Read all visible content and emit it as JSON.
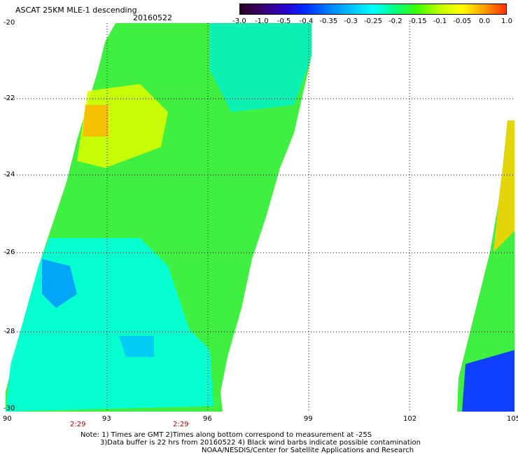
{
  "header": {
    "title": "ASCAT 25KM MLE-1 descending",
    "date": "20160522"
  },
  "colorbar": {
    "labels": [
      "-3.0",
      "-1.0",
      "-0.5",
      "-0.4",
      "-0.35",
      "-0.3",
      "-0.25",
      "-0.2",
      "-0.15",
      "-0.1",
      "-0.05",
      "0.0",
      "1.0"
    ],
    "colors": [
      "#2a0020",
      "#3a0070",
      "#2a00c8",
      "#0030ff",
      "#0080ff",
      "#00c0ff",
      "#00ffff",
      "#00ff80",
      "#40ff00",
      "#c0ff00",
      "#ffff00",
      "#ffa000",
      "#ff3000"
    ]
  },
  "axes": {
    "y_ticks": [
      "-20",
      "-22",
      "-24",
      "-26",
      "-28",
      "-30"
    ],
    "x_ticks": [
      "90",
      "93",
      "96",
      "99",
      "102",
      "105"
    ],
    "lon_range": [
      90,
      105
    ],
    "lat_range": [
      -30,
      -20
    ]
  },
  "times": [
    "2:29",
    "2:29"
  ],
  "notes": [
    "Note: 1) Times are GMT 2)Times along bottom correspond to measurement at -25S",
    "3)Data buffer is 22 hrs from 20160522 4) Black wind barbs indicate possible contamination",
    "NOAA/NESDIS/Center for Satellite Applications and Research"
  ]
}
